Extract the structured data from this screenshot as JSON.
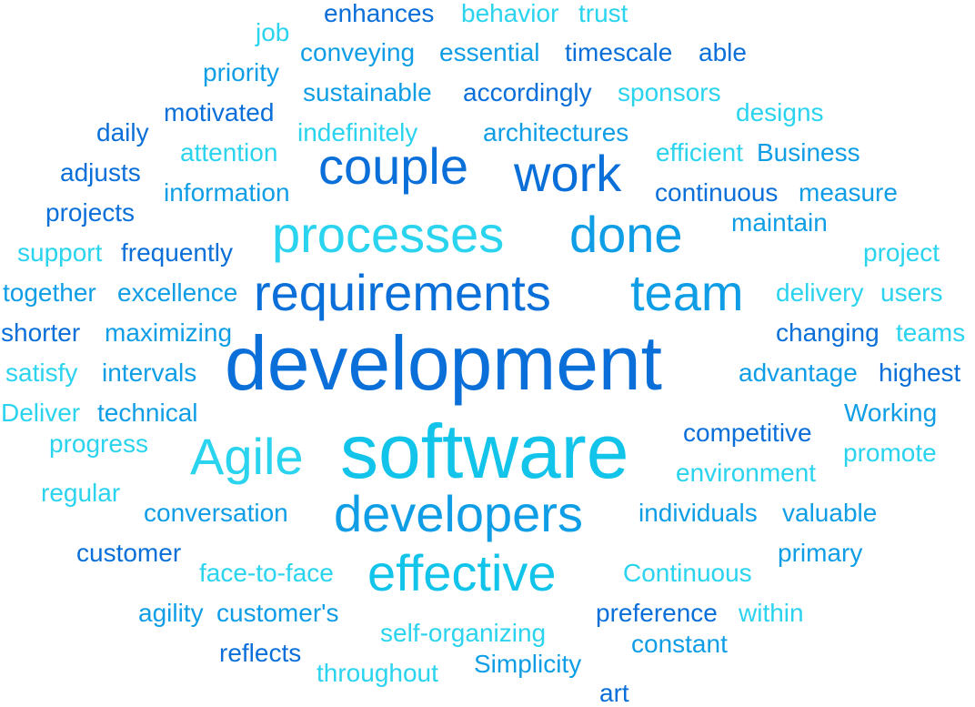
{
  "palette": {
    "blue": "#0a6fd8",
    "mid": "#0f9ee6",
    "cyan": "#12c4ea",
    "pale": "#2ad3ee"
  },
  "words": [
    {
      "text": "enhances",
      "color": "blue"
    },
    {
      "text": "behavior",
      "color": "pale"
    },
    {
      "text": "trust",
      "color": "pale"
    },
    {
      "text": "job",
      "color": "pale"
    },
    {
      "text": "conveying",
      "color": "mid"
    },
    {
      "text": "essential",
      "color": "mid"
    },
    {
      "text": "timescale",
      "color": "blue"
    },
    {
      "text": "able",
      "color": "blue"
    },
    {
      "text": "priority",
      "color": "mid"
    },
    {
      "text": "sustainable",
      "color": "mid"
    },
    {
      "text": "accordingly",
      "color": "blue"
    },
    {
      "text": "sponsors",
      "color": "pale"
    },
    {
      "text": "motivated",
      "color": "blue"
    },
    {
      "text": "designs",
      "color": "pale"
    },
    {
      "text": "daily",
      "color": "blue"
    },
    {
      "text": "indefinitely",
      "color": "pale"
    },
    {
      "text": "architectures",
      "color": "mid"
    },
    {
      "text": "attention",
      "color": "pale"
    },
    {
      "text": "efficient",
      "color": "pale"
    },
    {
      "text": "Business",
      "color": "mid"
    },
    {
      "text": "adjusts",
      "color": "blue"
    },
    {
      "text": "couple",
      "color": "blue"
    },
    {
      "text": "work",
      "color": "blue"
    },
    {
      "text": "information",
      "color": "mid"
    },
    {
      "text": "continuous",
      "color": "blue"
    },
    {
      "text": "measure",
      "color": "mid"
    },
    {
      "text": "projects",
      "color": "blue"
    },
    {
      "text": "maintain",
      "color": "mid"
    },
    {
      "text": "processes",
      "color": "pale"
    },
    {
      "text": "done",
      "color": "mid"
    },
    {
      "text": "support",
      "color": "pale"
    },
    {
      "text": "frequently",
      "color": "blue"
    },
    {
      "text": "project",
      "color": "pale"
    },
    {
      "text": "together",
      "color": "mid"
    },
    {
      "text": "excellence",
      "color": "mid"
    },
    {
      "text": "requirements",
      "color": "blue"
    },
    {
      "text": "team",
      "color": "mid"
    },
    {
      "text": "delivery",
      "color": "pale"
    },
    {
      "text": "users",
      "color": "pale"
    },
    {
      "text": "shorter",
      "color": "blue"
    },
    {
      "text": "maximizing",
      "color": "mid"
    },
    {
      "text": "changing",
      "color": "blue"
    },
    {
      "text": "teams",
      "color": "pale"
    },
    {
      "text": "development",
      "color": "blue"
    },
    {
      "text": "satisfy",
      "color": "pale"
    },
    {
      "text": "intervals",
      "color": "mid"
    },
    {
      "text": "advantage",
      "color": "mid"
    },
    {
      "text": "highest",
      "color": "blue"
    },
    {
      "text": "Deliver",
      "color": "pale"
    },
    {
      "text": "technical",
      "color": "mid"
    },
    {
      "text": "Working",
      "color": "mid"
    },
    {
      "text": "competitive",
      "color": "blue"
    },
    {
      "text": "progress",
      "color": "pale"
    },
    {
      "text": "Agile",
      "color": "pale"
    },
    {
      "text": "software",
      "color": "cyan"
    },
    {
      "text": "promote",
      "color": "pale"
    },
    {
      "text": "environment",
      "color": "pale"
    },
    {
      "text": "regular",
      "color": "pale"
    },
    {
      "text": "conversation",
      "color": "mid"
    },
    {
      "text": "developers",
      "color": "mid"
    },
    {
      "text": "individuals",
      "color": "mid"
    },
    {
      "text": "valuable",
      "color": "mid"
    },
    {
      "text": "customer",
      "color": "blue"
    },
    {
      "text": "primary",
      "color": "mid"
    },
    {
      "text": "face-to-face",
      "color": "pale"
    },
    {
      "text": "effective",
      "color": "cyan"
    },
    {
      "text": "Continuous",
      "color": "pale"
    },
    {
      "text": "agility",
      "color": "mid"
    },
    {
      "text": "customer's",
      "color": "mid"
    },
    {
      "text": "preference",
      "color": "blue"
    },
    {
      "text": "within",
      "color": "pale"
    },
    {
      "text": "self-organizing",
      "color": "pale"
    },
    {
      "text": "constant",
      "color": "mid"
    },
    {
      "text": "reflects",
      "color": "blue"
    },
    {
      "text": "Simplicity",
      "color": "mid"
    },
    {
      "text": "throughout",
      "color": "pale"
    },
    {
      "text": "art",
      "color": "blue"
    }
  ]
}
